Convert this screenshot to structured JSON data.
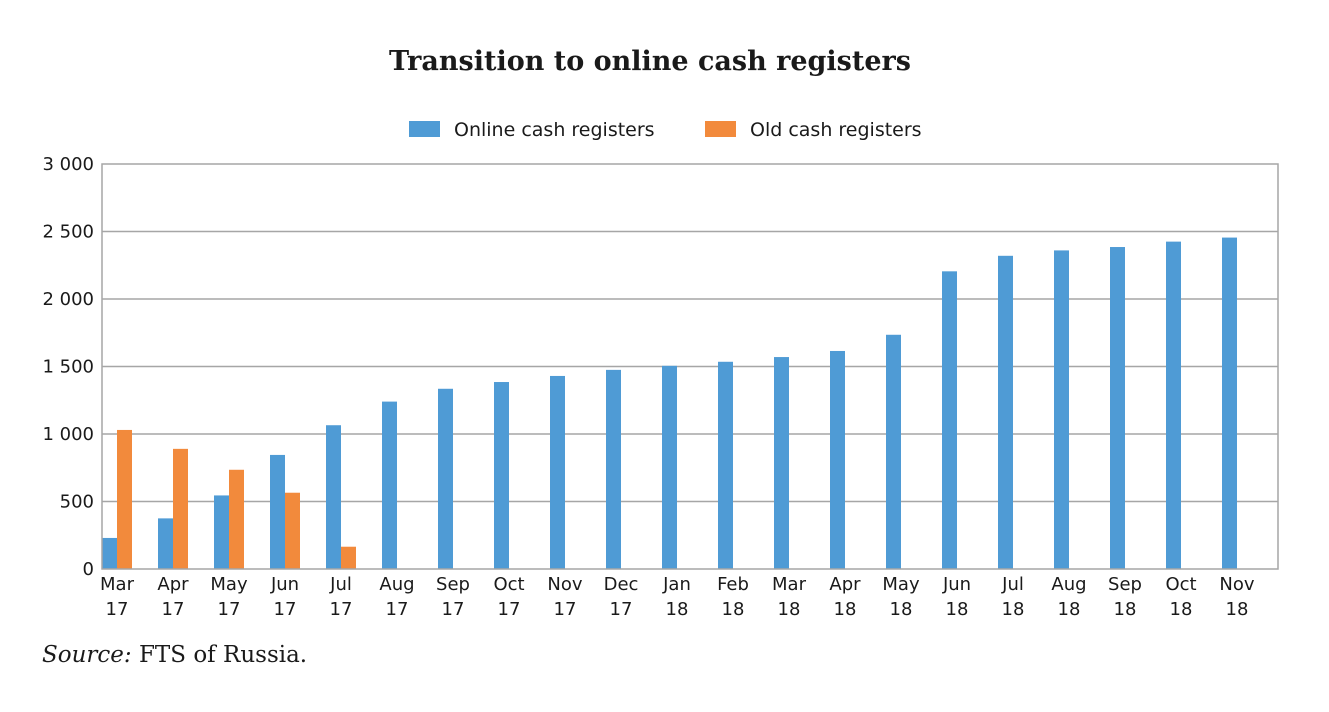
{
  "chart_data": {
    "type": "bar",
    "title": "Transition to online cash registers",
    "categories": [
      [
        "Mar",
        "17"
      ],
      [
        "Apr",
        "17"
      ],
      [
        "May",
        "17"
      ],
      [
        "Jun",
        "17"
      ],
      [
        "Jul",
        "17"
      ],
      [
        "Aug",
        "17"
      ],
      [
        "Sep",
        "17"
      ],
      [
        "Oct",
        "17"
      ],
      [
        "Nov",
        "17"
      ],
      [
        "Dec",
        "17"
      ],
      [
        "Jan",
        "18"
      ],
      [
        "Feb",
        "18"
      ],
      [
        "Mar",
        "18"
      ],
      [
        "Apr",
        "18"
      ],
      [
        "May",
        "18"
      ],
      [
        "Jun",
        "18"
      ],
      [
        "Jul",
        "18"
      ],
      [
        "Aug",
        "18"
      ],
      [
        "Sep",
        "18"
      ],
      [
        "Oct",
        "18"
      ],
      [
        "Nov",
        "18"
      ]
    ],
    "series": [
      {
        "name": "Online cash registers",
        "color": "#4f9bd5",
        "values": [
          230,
          375,
          545,
          845,
          1065,
          1240,
          1335,
          1385,
          1430,
          1475,
          1505,
          1535,
          1570,
          1615,
          1735,
          2205,
          2320,
          2360,
          2385,
          2425,
          2455
        ]
      },
      {
        "name": "Old cash registers",
        "color": "#f28a3c",
        "values": [
          1030,
          890,
          735,
          565,
          165,
          null,
          null,
          null,
          null,
          null,
          null,
          null,
          null,
          null,
          null,
          null,
          null,
          null,
          null,
          null,
          null
        ]
      }
    ],
    "yticks": [
      "0",
      "500",
      "1 000",
      "1 500",
      "2 000",
      "2 500",
      "3 000"
    ],
    "ylim": [
      0,
      3000
    ],
    "ystep": 500,
    "grid": true,
    "legend_position": "top-center",
    "grid_color": "#a6a6a6"
  },
  "source": {
    "label": "Source:",
    "text": "FTS of Russia."
  }
}
